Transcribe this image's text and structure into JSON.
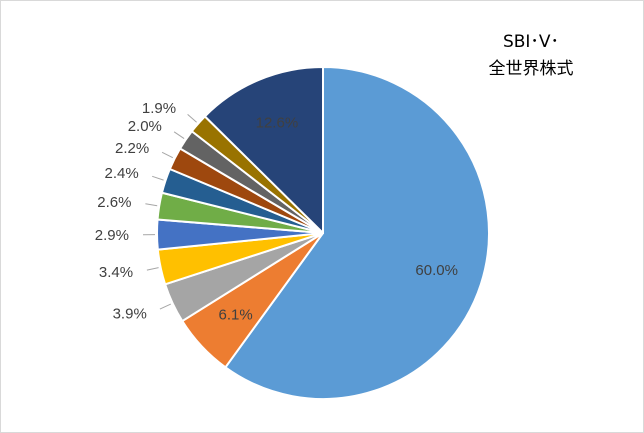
{
  "chart_data": {
    "type": "pie",
    "title_lines": [
      "SBI･V･",
      "全世界株式"
    ],
    "start_angle_deg": 0,
    "direction": "clockwise",
    "slices": [
      {
        "label": "60.0%",
        "value": 60.0,
        "color": "#5b9bd5"
      },
      {
        "label": "6.1%",
        "value": 6.1,
        "color": "#ed7d31"
      },
      {
        "label": "3.9%",
        "value": 3.9,
        "color": "#a5a5a5"
      },
      {
        "label": "3.4%",
        "value": 3.4,
        "color": "#ffc000"
      },
      {
        "label": "2.9%",
        "value": 2.9,
        "color": "#4472c4"
      },
      {
        "label": "2.6%",
        "value": 2.6,
        "color": "#70ad47"
      },
      {
        "label": "2.4%",
        "value": 2.4,
        "color": "#255e91"
      },
      {
        "label": "2.2%",
        "value": 2.2,
        "color": "#9e480e"
      },
      {
        "label": "2.0%",
        "value": 2.0,
        "color": "#636363"
      },
      {
        "label": "1.9%",
        "value": 1.9,
        "color": "#997300"
      },
      {
        "label": "12.6%",
        "value": 12.6,
        "color": "#264478"
      }
    ],
    "legend": "none"
  }
}
